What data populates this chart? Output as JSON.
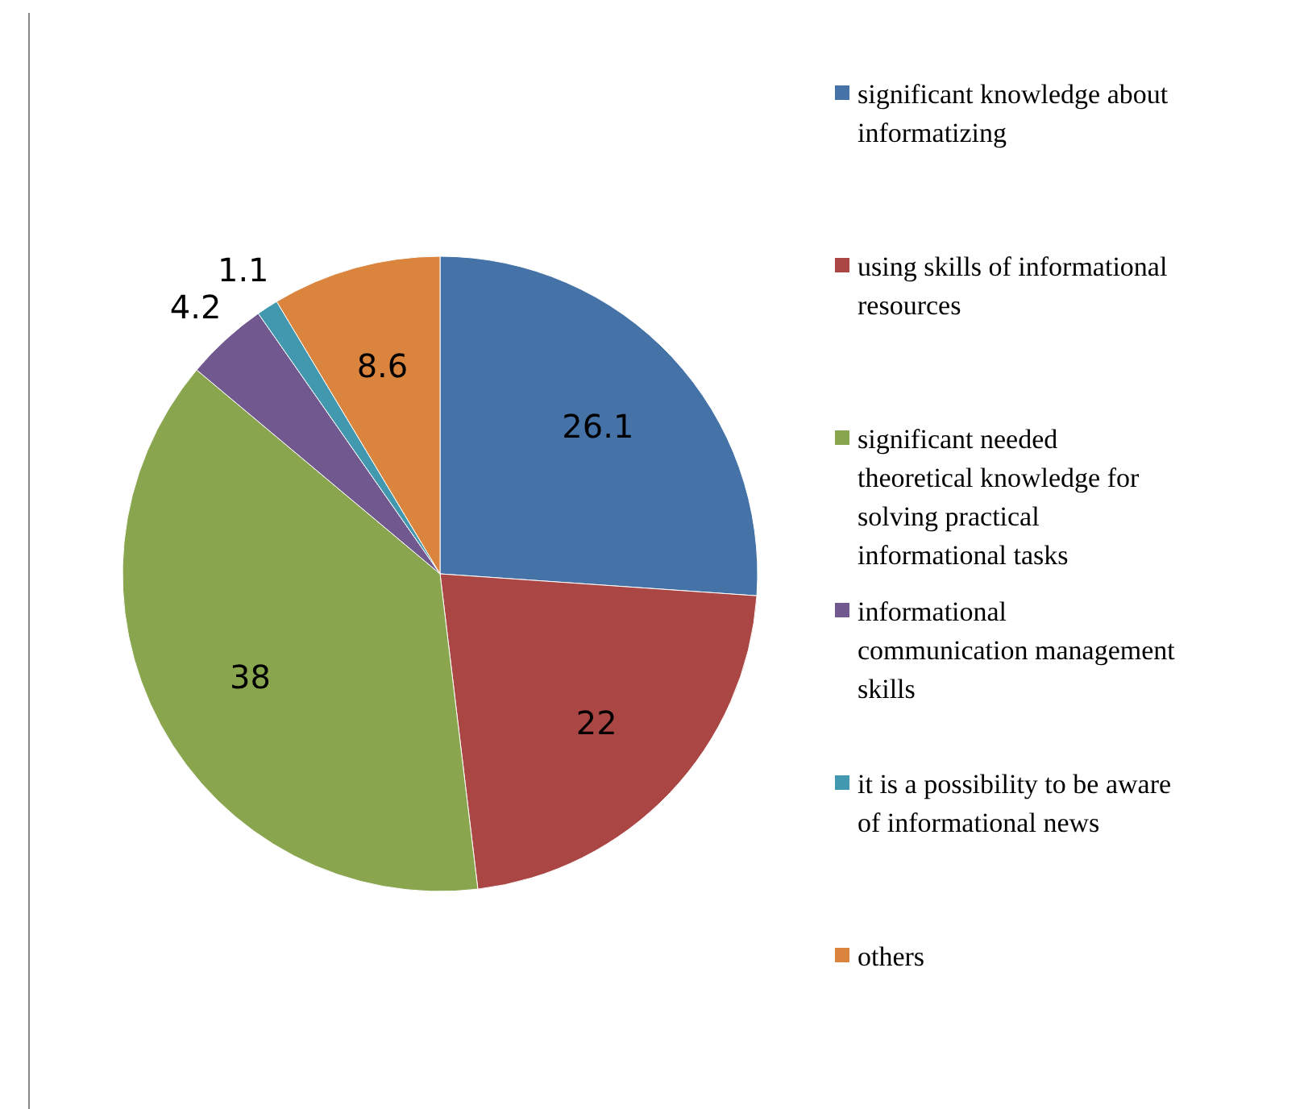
{
  "chart_data": {
    "type": "pie",
    "categories": [
      "significant knowledge about informatizing",
      "using skills of informational resources",
      "significant needed theoretical knowledge for solving practical informational tasks",
      "informational communication management  skills",
      "it is a possibility to be aware of informational news",
      "others"
    ],
    "values": [
      26.1,
      22,
      38,
      4.2,
      1.1,
      8.6
    ],
    "colors": [
      "#4572a7",
      "#aa4643",
      "#89a54e",
      "#71588f",
      "#4198af",
      "#db843d"
    ],
    "data_labels": true,
    "legend": "right"
  }
}
